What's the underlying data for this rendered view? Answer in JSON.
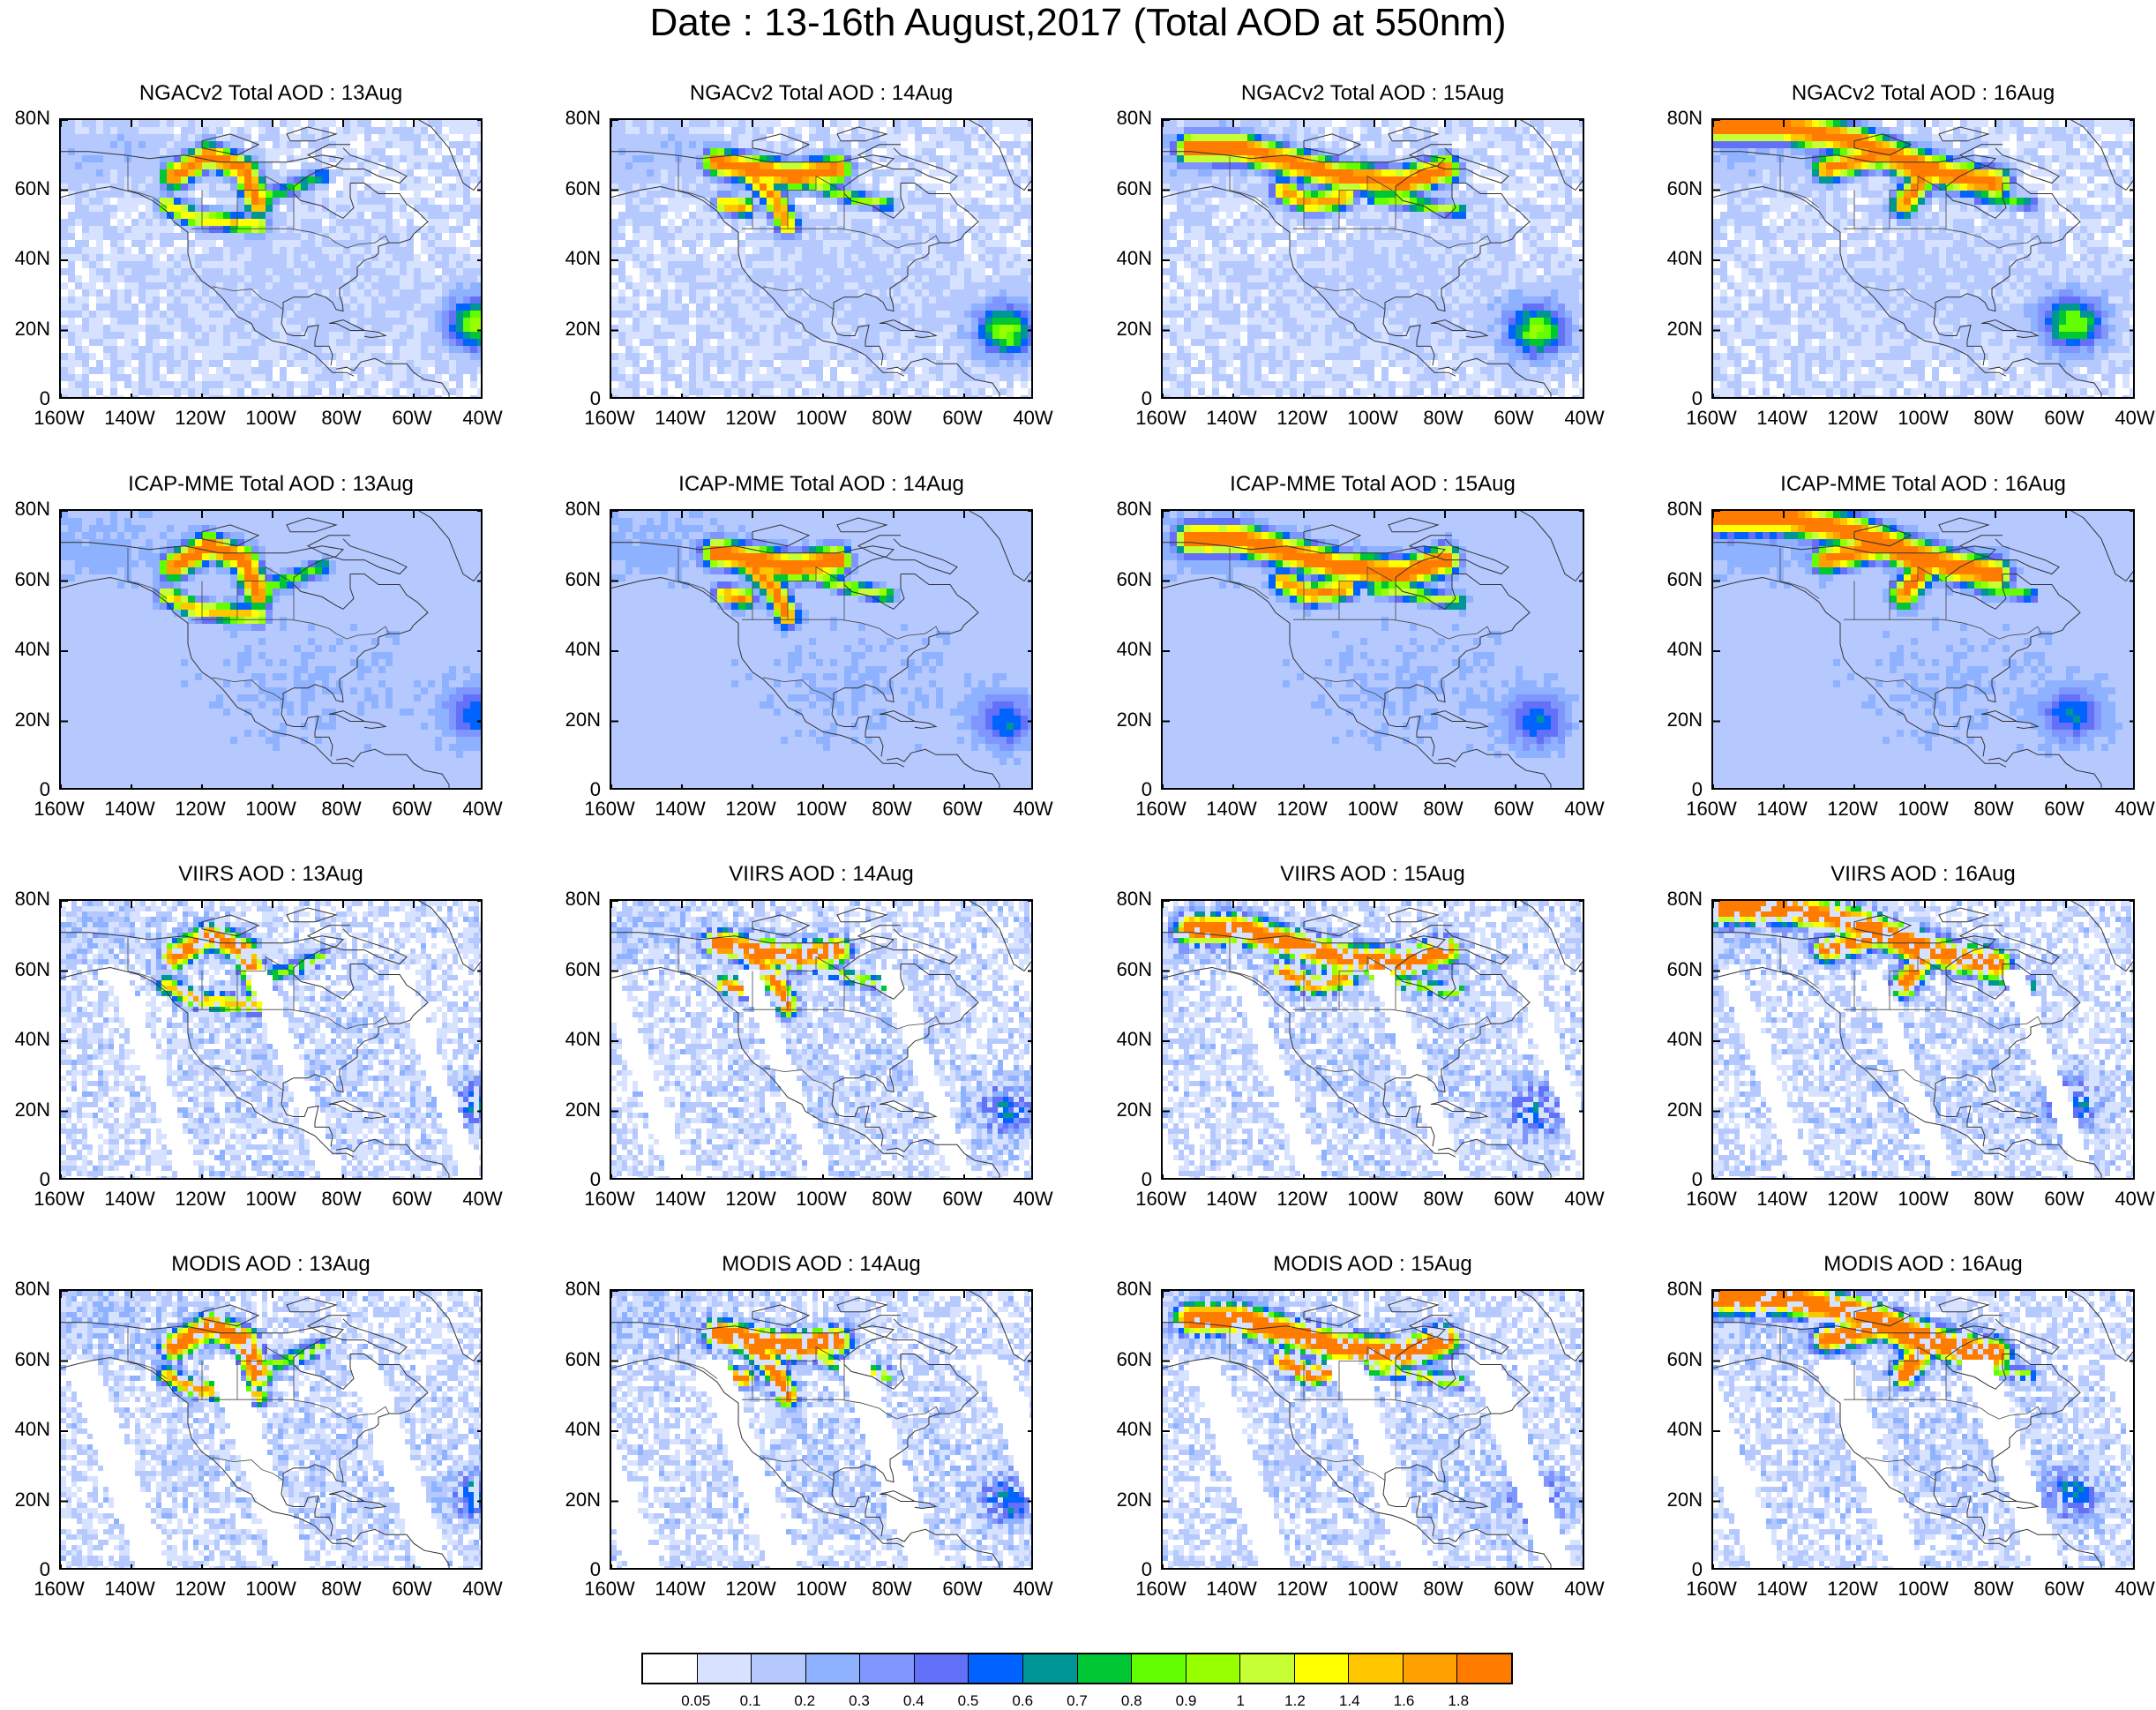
{
  "title": "Date : 13-16th August,2017 (Total AOD at 550nm)",
  "axes": {
    "x_ticks": [
      "160W",
      "140W",
      "120W",
      "100W",
      "80W",
      "60W",
      "40W"
    ],
    "y_ticks": [
      "80N",
      "60N",
      "40N",
      "20N",
      "0"
    ]
  },
  "panels": [
    {
      "title": "NGACv2 Total AOD : 13Aug",
      "model": "ngac",
      "day": 0
    },
    {
      "title": "NGACv2 Total AOD : 14Aug",
      "model": "ngac",
      "day": 1
    },
    {
      "title": "NGACv2 Total AOD : 15Aug",
      "model": "ngac",
      "day": 2
    },
    {
      "title": "NGACv2 Total AOD : 16Aug",
      "model": "ngac",
      "day": 3
    },
    {
      "title": "ICAP-MME Total AOD : 13Aug",
      "model": "icap",
      "day": 0
    },
    {
      "title": "ICAP-MME Total AOD : 14Aug",
      "model": "icap",
      "day": 1
    },
    {
      "title": "ICAP-MME Total AOD : 15Aug",
      "model": "icap",
      "day": 2
    },
    {
      "title": "ICAP-MME Total AOD : 16Aug",
      "model": "icap",
      "day": 3
    },
    {
      "title": "VIIRS AOD : 13Aug",
      "model": "viirs",
      "day": 0
    },
    {
      "title": "VIIRS AOD : 14Aug",
      "model": "viirs",
      "day": 1
    },
    {
      "title": "VIIRS AOD : 15Aug",
      "model": "viirs",
      "day": 2
    },
    {
      "title": "VIIRS AOD : 16Aug",
      "model": "viirs",
      "day": 3
    },
    {
      "title": "MODIS AOD : 13Aug",
      "model": "modis",
      "day": 0
    },
    {
      "title": "MODIS AOD : 14Aug",
      "model": "modis",
      "day": 1
    },
    {
      "title": "MODIS AOD : 15Aug",
      "model": "modis",
      "day": 2
    },
    {
      "title": "MODIS AOD : 16Aug",
      "model": "modis",
      "day": 3
    }
  ],
  "colorbar": {
    "labels": [
      "0.05",
      "0.1",
      "0.2",
      "0.3",
      "0.4",
      "0.5",
      "0.6",
      "0.7",
      "0.8",
      "0.9",
      "1",
      "1.2",
      "1.4",
      "1.6",
      "1.8"
    ],
    "colors": [
      "#ffffff",
      "#d6e2ff",
      "#b5c9ff",
      "#8eb2ff",
      "#7f96ff",
      "#6370f8",
      "#0063ff",
      "#009696",
      "#00c633",
      "#63ff00",
      "#96ff00",
      "#c6ff33",
      "#ffff00",
      "#ffc600",
      "#ffa000",
      "#ff7c00",
      "#ff1900"
    ]
  }
}
